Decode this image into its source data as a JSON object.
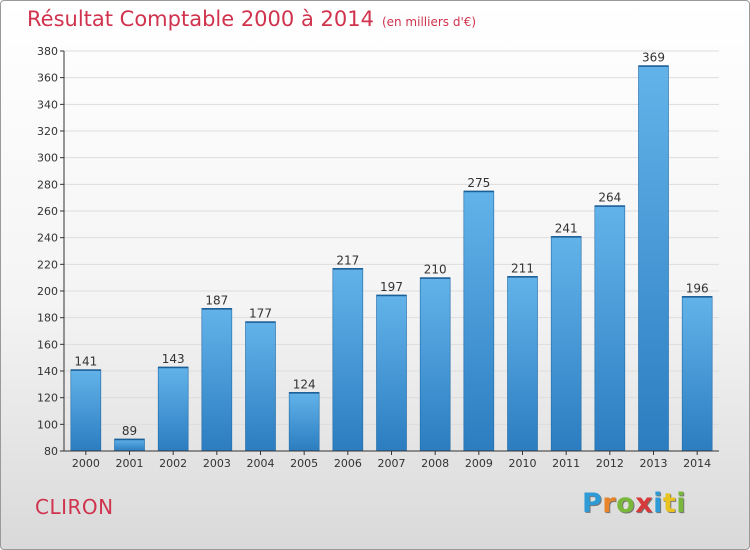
{
  "header": {
    "title": "Résultat Comptable 2000 à 2014",
    "subtitle": "(en milliers d'€)"
  },
  "footer": {
    "commune": "CLIRON",
    "brand_letters": [
      "P",
      "r",
      "o",
      "x",
      "i",
      "t",
      "i"
    ],
    "brand_colors": [
      "#2e9bd6",
      "#e8852b",
      "#7ab83c",
      "#d63a3a",
      "#2e9bd6",
      "#e8c21e",
      "#7ab83c"
    ]
  },
  "colors": {
    "title": "#d0334e",
    "bar_light": "#63b3ea",
    "bar_dark": "#2b7dc0",
    "grid": "#dddddd",
    "axis": "#333333"
  },
  "chart_data": {
    "type": "bar",
    "categories": [
      "2000",
      "2001",
      "2002",
      "2003",
      "2004",
      "2005",
      "2006",
      "2007",
      "2008",
      "2009",
      "2010",
      "2011",
      "2012",
      "2013",
      "2014"
    ],
    "values": [
      141,
      89,
      143,
      187,
      177,
      124,
      217,
      197,
      210,
      275,
      211,
      241,
      264,
      369,
      196
    ],
    "ylim": [
      80,
      380
    ],
    "yticks": [
      80,
      100,
      120,
      140,
      160,
      180,
      200,
      220,
      240,
      260,
      280,
      300,
      320,
      340,
      360,
      380
    ],
    "grid": true,
    "data_labels": true
  }
}
